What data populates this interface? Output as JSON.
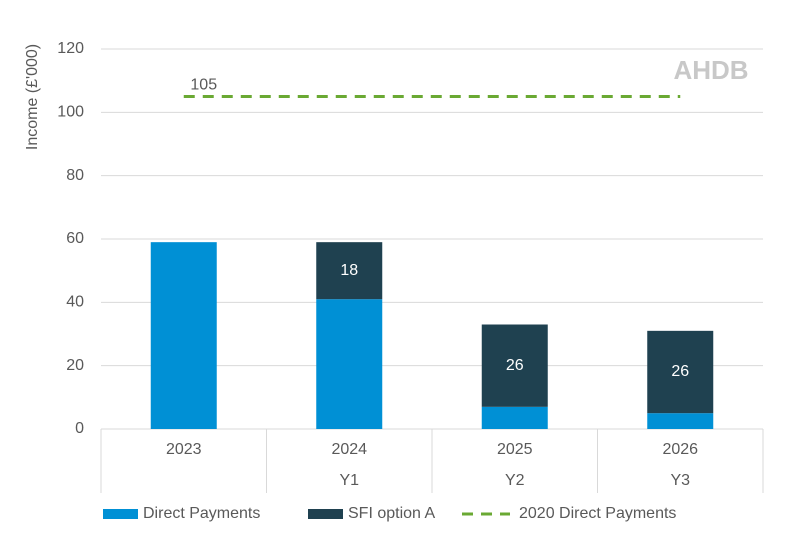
{
  "chart_data": {
    "type": "bar",
    "stacked": true,
    "y_label": "Income (£'000)",
    "watermark": "AHDB",
    "categories": [
      "2023",
      "2024",
      "2025",
      "2026"
    ],
    "subcategories": [
      null,
      "Y1",
      "Y2",
      "Y3"
    ],
    "series": [
      {
        "name": "Direct Payments",
        "type": "bar",
        "color": "#0090d5",
        "values": [
          59,
          41,
          7,
          5
        ],
        "data_labels": false
      },
      {
        "name": "SFI option A",
        "type": "bar",
        "color": "#1f4150",
        "values": [
          null,
          18,
          26,
          26
        ],
        "data_labels": true
      },
      {
        "name": "2020 Direct Payments",
        "type": "line",
        "dashed": true,
        "color": "#6aa933",
        "values": [
          105,
          105,
          105,
          105
        ],
        "data_labels": "first"
      }
    ],
    "ylim": [
      0,
      120
    ],
    "yticks": [
      0,
      20,
      40,
      60,
      80,
      100,
      120
    ],
    "grid": true,
    "legend": "bottom"
  }
}
